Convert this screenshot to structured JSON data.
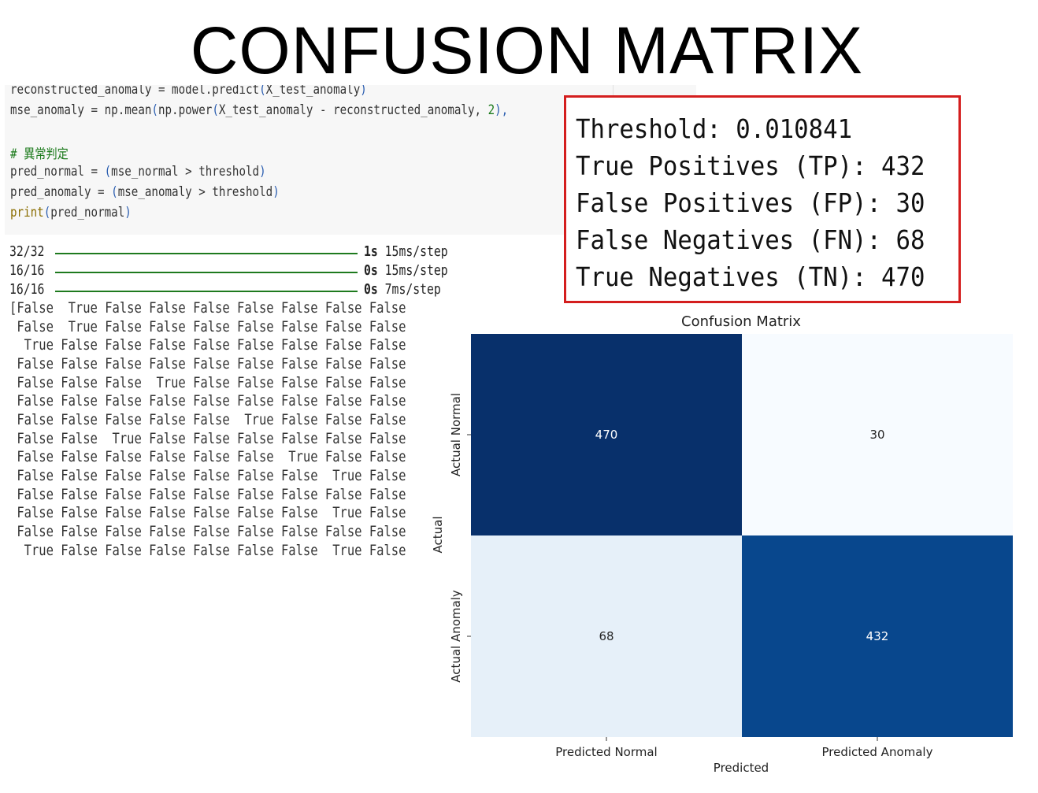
{
  "slide": {
    "title": "CONFUSION MATRIX"
  },
  "code": {
    "line1": {
      "a": "reconstructed_anomaly = model.predict",
      "p1": "(",
      "b": "X_test_anomaly",
      "p2": ")"
    },
    "line2": {
      "a": "mse_anomaly = np.mean",
      "p1": "(",
      "b": "np.power",
      "p2": "(",
      "c": "X_test_anomaly - reconstructed_anomaly, ",
      "n": "2",
      "d": "),"
    },
    "comment": "# 異常判定",
    "line4": {
      "a": "pred_normal = ",
      "p1": "(",
      "b": "mse_normal > threshold",
      "p2": ")"
    },
    "line5": {
      "a": "pred_anomaly = ",
      "p1": "(",
      "b": "mse_anomaly > threshold",
      "p2": ")"
    },
    "line6": {
      "fn": "print",
      "p1": "(",
      "b": "pred_normal",
      "p2": ")"
    }
  },
  "output": {
    "progress": [
      {
        "count": "32/32",
        "time": "1s",
        "rate": " 15ms/step"
      },
      {
        "count": "16/16",
        "time": "0s",
        "rate": " 15ms/step"
      },
      {
        "count": "16/16",
        "time": "0s",
        "rate": " 7ms/step"
      }
    ],
    "bool_lines": [
      "[False  True False False False False False False False",
      " False  True False False False False False False False",
      "  True False False False False False False False False",
      " False False False False False False False False False",
      " False False False  True False False False False False",
      " False False False False False False False False False",
      " False False False False False  True False False False",
      " False False  True False False False False False False",
      " False False False False False False  True False False",
      " False False False False False False False  True False",
      " False False False False False False False False False",
      " False False False False False False False  True False",
      " False False False False False False False False False",
      "  True False False False False False False  True False"
    ]
  },
  "metrics": {
    "threshold": "Threshold: 0.010841",
    "tp": "True Positives (TP): 432",
    "fp": "False Positives (FP): 30",
    "fn": "False Negatives (FN): 68",
    "tn": "True Negatives (TN): 470"
  },
  "chart_data": {
    "type": "heatmap",
    "title": "Confusion Matrix",
    "xlabel": "Predicted",
    "ylabel": "Actual",
    "x_categories": [
      "Predicted Normal",
      "Predicted Anomaly"
    ],
    "y_categories": [
      "Actual Normal",
      "Actual Anomaly"
    ],
    "values": [
      [
        470,
        30
      ],
      [
        68,
        432
      ]
    ],
    "colormap": "Blues",
    "vmin": 30,
    "vmax": 470,
    "colorbar": false
  }
}
